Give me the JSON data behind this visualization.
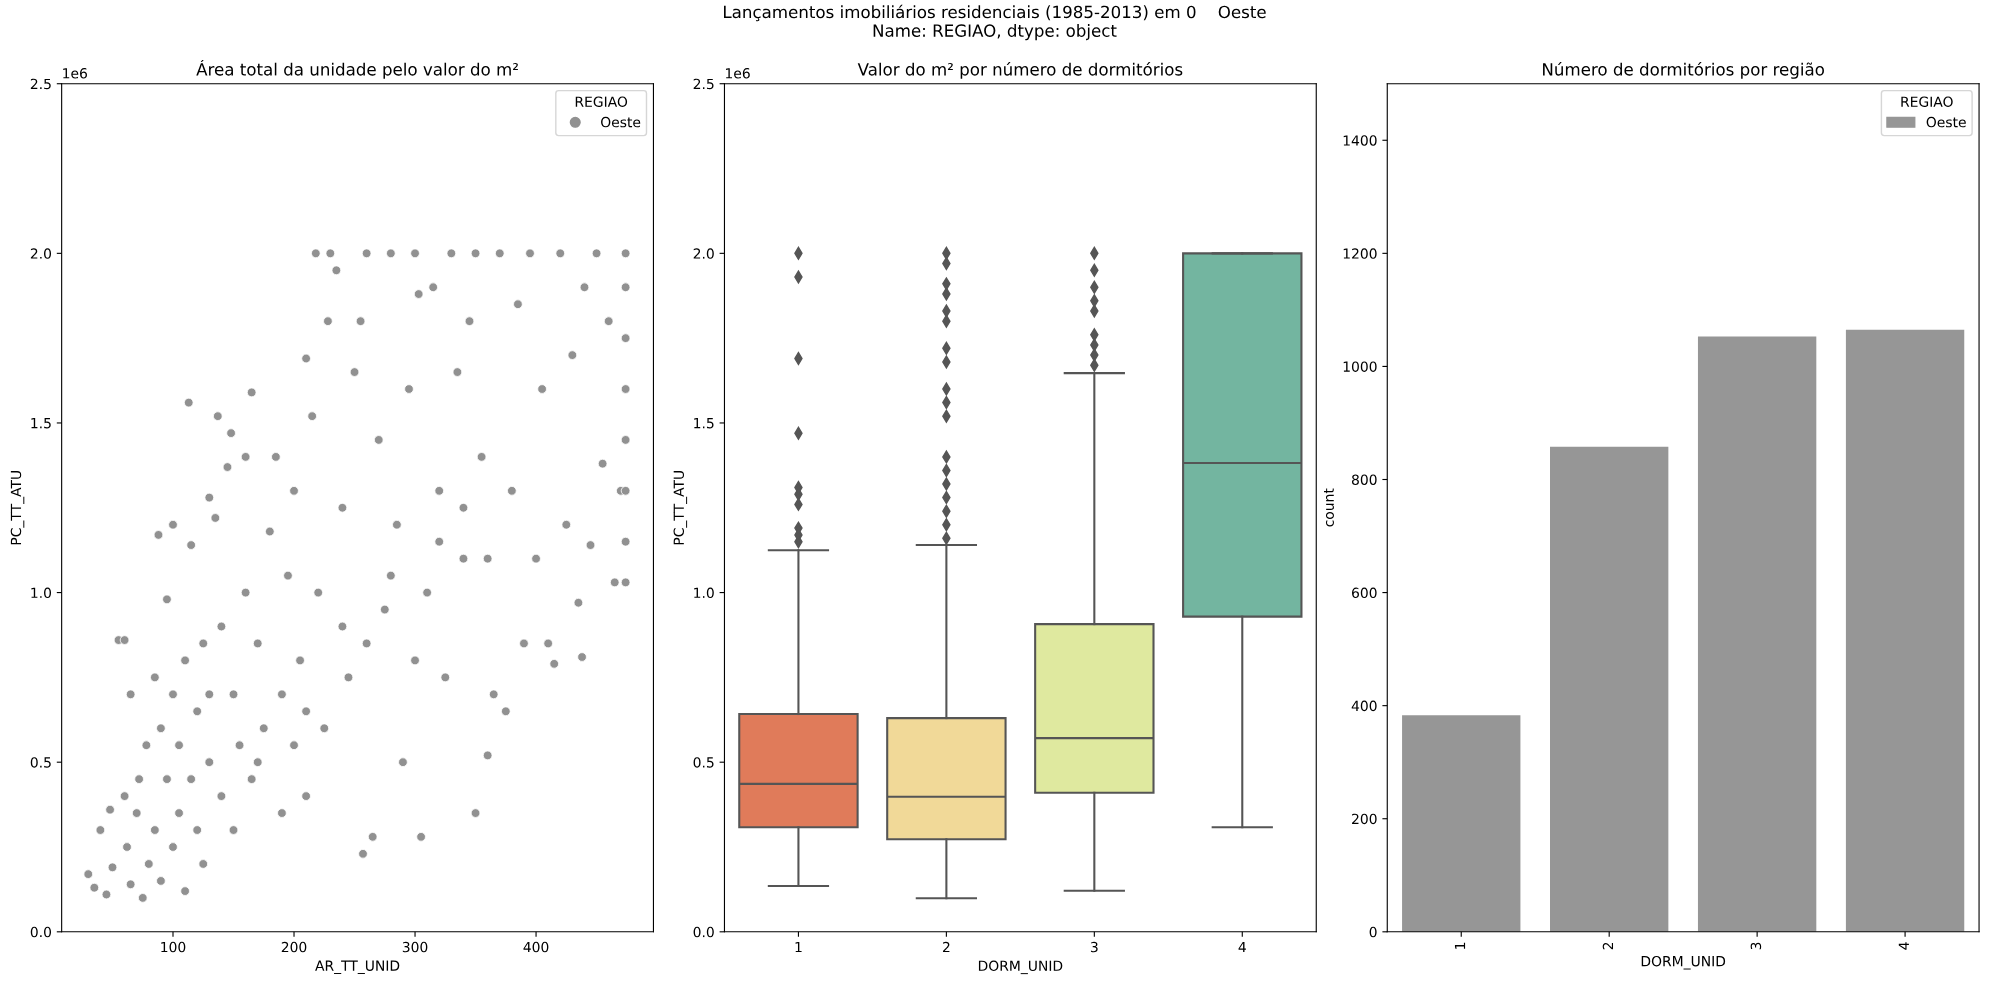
{
  "chart_data": [
    {
      "type": "scatter",
      "title": "Área total da unidade pelo valor do m²",
      "xlabel": "AR_TT_UNID",
      "ylabel": "PC_TT_ATU",
      "legend_title": "REGIAO",
      "legend": "top right",
      "marker": "circle",
      "annotations": [
        "1e6",
        "Lançamentos imobiliários residenciais (1985-2013) em 0    Oeste\nName: REGIAO, dtype: object"
      ],
      "xlim": [
        8,
        497
      ],
      "xticks": [
        100,
        200,
        300,
        400
      ],
      "ylim": [
        0,
        2.5
      ],
      "yticks": [
        {
          "value": 0,
          "label": "0.0"
        },
        0.5,
        {
          "value": 1,
          "label": "1.0"
        },
        1.5,
        {
          "value": 2,
          "label": "2.0"
        },
        2.5
      ],
      "series": [
        {
          "name": "Oeste",
          "color": "#919191",
          "x": [
            30,
            35,
            40,
            45,
            48,
            50,
            55,
            60,
            60,
            62,
            65,
            65,
            70,
            72,
            75,
            78,
            80,
            85,
            85,
            88,
            90,
            90,
            95,
            95,
            100,
            100,
            100,
            105,
            105,
            110,
            110,
            113,
            115,
            115,
            120,
            120,
            125,
            125,
            130,
            130,
            135,
            137,
            140,
            140,
            145,
            148,
            150,
            150,
            155,
            160,
            160,
            165,
            165,
            170,
            175,
            180,
            185,
            190,
            190,
            195,
            200,
            200,
            205,
            210,
            210,
            215,
            218,
            220,
            225,
            228,
            230,
            235,
            240,
            245,
            250,
            255,
            257,
            260,
            265,
            270,
            275,
            280,
            285,
            290,
            295,
            300,
            303,
            305,
            310,
            315,
            320,
            325,
            330,
            335,
            340,
            345,
            350,
            350,
            355,
            360,
            365,
            370,
            375,
            380,
            385,
            390,
            395,
            400,
            405,
            410,
            415,
            420,
            425,
            430,
            435,
            438,
            440,
            445,
            450,
            455,
            460,
            465,
            470,
            474,
            474,
            474,
            474,
            474,
            474,
            474,
            474,
            130,
            170,
            210,
            240,
            260,
            280,
            300,
            320,
            340,
            360
          ],
          "values": [
            0.17,
            0.13,
            0.3,
            0.11,
            0.36,
            0.19,
            0.86,
            0.86,
            0.4,
            0.25,
            0.7,
            0.14,
            0.35,
            0.45,
            0.1,
            0.55,
            0.2,
            0.3,
            0.75,
            1.17,
            0.6,
            0.15,
            0.45,
            0.98,
            1.2,
            0.25,
            0.7,
            0.35,
            0.55,
            0.8,
            0.12,
            1.56,
            1.14,
            0.45,
            0.3,
            0.65,
            0.85,
            0.2,
            1.28,
            0.5,
            1.22,
            1.52,
            0.4,
            0.9,
            1.37,
            1.47,
            0.7,
            0.3,
            0.55,
            1.4,
            1.0,
            1.59,
            0.45,
            0.85,
            0.6,
            1.18,
            1.4,
            0.35,
            0.7,
            1.05,
            0.55,
            1.3,
            0.8,
            0.4,
            1.69,
            1.52,
            2.0,
            1.0,
            0.6,
            1.8,
            2.0,
            1.95,
            1.25,
            0.75,
            1.65,
            1.8,
            0.23,
            2.0,
            0.28,
            1.45,
            0.95,
            2.0,
            1.2,
            0.5,
            1.6,
            2.0,
            1.88,
            0.28,
            1.0,
            1.9,
            1.3,
            0.75,
            2.0,
            1.65,
            1.1,
            1.8,
            0.35,
            2.0,
            1.4,
            0.52,
            0.7,
            2.0,
            0.65,
            1.3,
            1.85,
            0.85,
            2.0,
            1.1,
            1.6,
            0.85,
            0.79,
            2.0,
            1.2,
            1.7,
            0.97,
            0.81,
            1.9,
            1.14,
            2.0,
            1.38,
            1.8,
            1.03,
            1.3,
            2.0,
            1.9,
            1.75,
            1.6,
            1.45,
            1.3,
            1.15,
            1.03,
            0.7,
            0.5,
            0.65,
            0.9,
            0.85,
            1.05,
            0.8,
            1.15,
            1.25,
            1.1
          ]
        }
      ]
    },
    {
      "type": "box",
      "title": "Valor do m² por número de dormitórios",
      "xlabel": "DORM_UNID",
      "ylabel": "PC_TT_ATU",
      "annotations": [
        "1e6"
      ],
      "categories": [
        "1",
        "2",
        "3",
        "4"
      ],
      "colors": [
        "#e07b5a",
        "#f1d998",
        "#dfe99f",
        "#73b5a0"
      ],
      "ylim": [
        0,
        2.5
      ],
      "yticks": [
        {
          "value": 0,
          "label": "0.0"
        },
        0.5,
        {
          "value": 1,
          "label": "1.0"
        },
        1.5,
        {
          "value": 2,
          "label": "2.0"
        },
        2.5
      ],
      "marker": "diamond",
      "boxes": [
        {
          "low": 0.135,
          "q1": 0.308,
          "median": 0.436,
          "q3": 0.642,
          "high": 1.125,
          "outliers": [
            1.15,
            1.17,
            1.19,
            1.26,
            1.29,
            1.31,
            1.47,
            1.69,
            1.93,
            2.0
          ]
        },
        {
          "low": 0.099,
          "q1": 0.273,
          "median": 0.398,
          "q3": 0.63,
          "high": 1.14,
          "outliers": [
            1.16,
            1.2,
            1.24,
            1.28,
            1.32,
            1.36,
            1.4,
            1.52,
            1.56,
            1.6,
            1.68,
            1.72,
            1.8,
            1.83,
            1.88,
            1.91,
            1.97,
            2.0
          ]
        },
        {
          "low": 0.121,
          "q1": 0.41,
          "median": 0.571,
          "q3": 0.907,
          "high": 1.647,
          "outliers": [
            1.67,
            1.7,
            1.73,
            1.76,
            1.83,
            1.86,
            1.9,
            1.95,
            2.0
          ]
        },
        {
          "low": 0.308,
          "q1": 0.929,
          "median": 1.382,
          "q3": 2.0,
          "high": 2.0
        }
      ]
    },
    {
      "type": "bar",
      "title": "Número de dormitórios por região",
      "xlabel": "DORM_UNID",
      "ylabel": "count",
      "legend_title": "REGIAO",
      "legend": "top right",
      "categories": [
        "1",
        "2",
        "3",
        "4"
      ],
      "ylim": [
        0,
        1500
      ],
      "yticks": [
        0,
        200,
        400,
        600,
        800,
        1000,
        1200,
        1400
      ],
      "series": [
        {
          "name": "Oeste",
          "color": "#969696",
          "values": [
            383,
            858,
            1053,
            1065
          ]
        }
      ]
    }
  ]
}
